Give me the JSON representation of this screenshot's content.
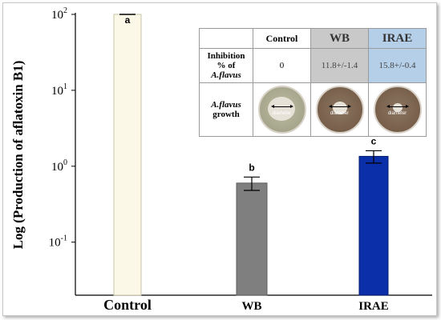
{
  "chart_data": {
    "type": "bar",
    "categories": [
      "Control",
      "WB",
      "IRAE"
    ],
    "values": [
      100,
      0.6,
      1.35
    ],
    "errors": [
      0,
      0.12,
      0.25
    ],
    "significance": [
      "a",
      "b",
      "c"
    ],
    "colors": [
      "#fbf8e8",
      "#7f7f7f",
      "#0a2fa8"
    ],
    "edge_colors": [
      "#c9c2a4",
      "#5f5f5f",
      "#061d70"
    ],
    "ylabel": "Log (Production of aflatoxin B1)",
    "yscale": "log",
    "ylim": [
      0.02,
      100
    ],
    "yticks": [
      {
        "base": "10",
        "exp": "2"
      },
      {
        "base": "10",
        "exp": "1"
      },
      {
        "base": "10",
        "exp": "0"
      },
      {
        "base": "10",
        "exp": "-1"
      }
    ],
    "grid": false
  },
  "inset": {
    "headers": [
      "Control",
      "WB",
      "IRAE"
    ],
    "row1_label_a": "Inhibition",
    "row1_label_b": "% of",
    "row1_label_c": "A.flavus",
    "row1_values": [
      "0",
      "11.8+/-1.4",
      "15.8+/-0.4"
    ],
    "row2_label_a": "A.flavus",
    "row2_label_b": "growth",
    "plate_label": "diameter"
  }
}
